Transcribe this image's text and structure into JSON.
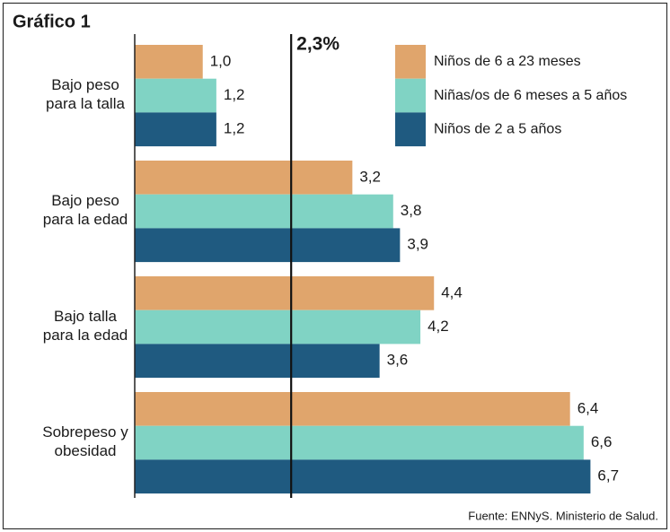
{
  "chart_data": {
    "type": "barh",
    "title": "Gráfico 1",
    "source": "Fuente: ENNyS. Ministerio de Salud.",
    "categories": [
      "Bajo peso\npara la talla",
      "Bajo peso\npara la edad",
      "Bajo talla\npara la edad",
      "Sobrepeso y\nobesidad"
    ],
    "series": [
      {
        "name": "Niños de 6 a 23 meses",
        "color": "#e0a56c",
        "values": [
          1.0,
          3.2,
          4.4,
          6.4
        ],
        "value_labels": [
          "1,0",
          "3,2",
          "4,4",
          "6,4"
        ]
      },
      {
        "name": "Niñas/os de 6 meses a 5 años",
        "color": "#80d3c4",
        "values": [
          1.2,
          3.8,
          4.2,
          6.6
        ],
        "value_labels": [
          "1,2",
          "3,8",
          "4,2",
          "6,6"
        ]
      },
      {
        "name": "Niños de 2 a 5 años",
        "color": "#1f5a80",
        "values": [
          1.2,
          3.9,
          3.6,
          6.7
        ],
        "value_labels": [
          "1,2",
          "3,9",
          "3,6",
          "6,7"
        ]
      }
    ],
    "reference_line": {
      "value": 2.3,
      "label": "2,3%"
    },
    "xlim": [
      0,
      7.5
    ]
  }
}
